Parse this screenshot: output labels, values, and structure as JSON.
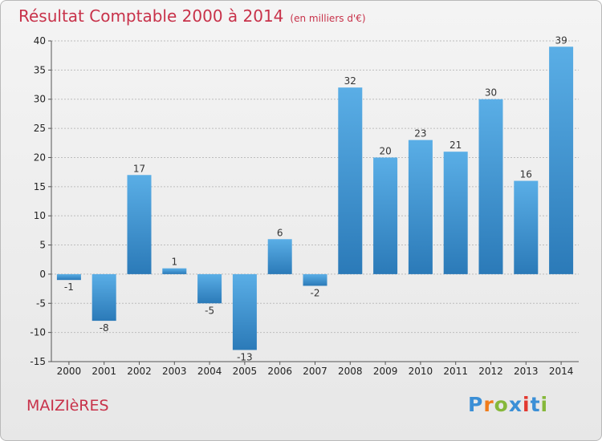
{
  "header": {
    "title": "Résultat Comptable 2000 à 2014",
    "subtitle": "(en milliers d'€)"
  },
  "footer": {
    "commune": "MAIZIèRES",
    "brand": "Proxiti",
    "brand_colors": [
      "#3b8fd6",
      "#f07c1b",
      "#86b83a",
      "#3b8fd6",
      "#e2382f",
      "#3b8fd6",
      "#86b83a"
    ]
  },
  "colors": {
    "bar_light": "#5aaee6",
    "bar_dark": "#2b7ab8",
    "title": "#c8324a"
  },
  "chart_data": {
    "type": "bar",
    "title": "Résultat Comptable 2000 à 2014",
    "subtitle": "(en milliers d'€)",
    "categories": [
      "2000",
      "2001",
      "2002",
      "2003",
      "2004",
      "2005",
      "2006",
      "2007",
      "2008",
      "2009",
      "2010",
      "2011",
      "2012",
      "2013",
      "2014"
    ],
    "values": [
      -1,
      -8,
      17,
      1,
      -5,
      -13,
      6,
      -2,
      32,
      20,
      23,
      21,
      30,
      16,
      39
    ],
    "ylim": [
      -15,
      40
    ],
    "yticks": [
      -15,
      -10,
      -5,
      0,
      5,
      10,
      15,
      20,
      25,
      30,
      35,
      40
    ],
    "grid": true
  }
}
